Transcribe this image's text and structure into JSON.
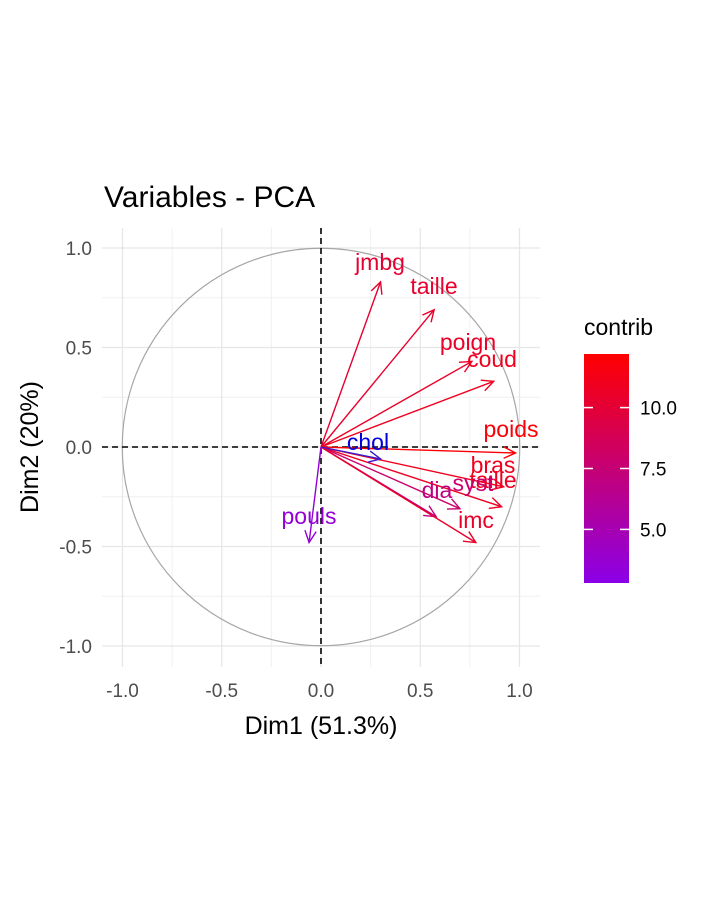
{
  "chart_data": {
    "type": "scatter",
    "subtype": "pca-variable-correlation-circle",
    "title": "Variables - PCA",
    "xlabel": "Dim1 (51.3%)",
    "ylabel": "Dim2 (20%)",
    "xlim": [
      -1.1,
      1.1
    ],
    "ylim": [
      -1.1,
      1.1
    ],
    "x_ticks": [
      "-1.0",
      "-0.5",
      "0.0",
      "0.5",
      "1.0"
    ],
    "y_ticks": [
      "-1.0",
      "-0.5",
      "0.0",
      "0.5",
      "1.0"
    ],
    "grid": true,
    "unit_circle": true,
    "zero_lines": "dashed",
    "legend": {
      "title": "contrib",
      "placement": "right",
      "ticks": [
        "10.0",
        "7.5",
        "5.0"
      ],
      "tick_values": [
        10.0,
        7.5,
        5.0
      ],
      "range": [
        2.8,
        12.2
      ],
      "color_low": "#8B00E8",
      "color_high": "#FF0000"
    },
    "variables": [
      {
        "label": "jmbg",
        "x": 0.3,
        "y": 0.83,
        "contrib": 10.2
      },
      {
        "label": "taille",
        "x": 0.57,
        "y": 0.69,
        "contrib": 10.4
      },
      {
        "label": "poign",
        "x": 0.76,
        "y": 0.43,
        "contrib": 10.6
      },
      {
        "label": "coud",
        "x": 0.87,
        "y": 0.33,
        "contrib": 11.0
      },
      {
        "label": "poids",
        "x": 0.98,
        "y": -0.03,
        "contrib": 12.0
      },
      {
        "label": "bras",
        "x": 0.92,
        "y": -0.2,
        "contrib": 11.0
      },
      {
        "label": "taille",
        "x": 0.91,
        "y": -0.3,
        "contrib": 10.8
      },
      {
        "label": "syst",
        "x": 0.7,
        "y": -0.31,
        "contrib": 7.8
      },
      {
        "label": "dia",
        "x": 0.58,
        "y": -0.35,
        "contrib": 7.0
      },
      {
        "label": "imc",
        "x": 0.78,
        "y": -0.48,
        "contrib": 10.5
      },
      {
        "label": "chol",
        "x": 0.3,
        "y": -0.06,
        "contrib": 1.5
      },
      {
        "label": "pouls",
        "x": -0.06,
        "y": -0.48,
        "contrib": 3.5
      }
    ],
    "label_overrides": [
      {
        "label": "chol",
        "color": "#0000DD"
      }
    ]
  }
}
